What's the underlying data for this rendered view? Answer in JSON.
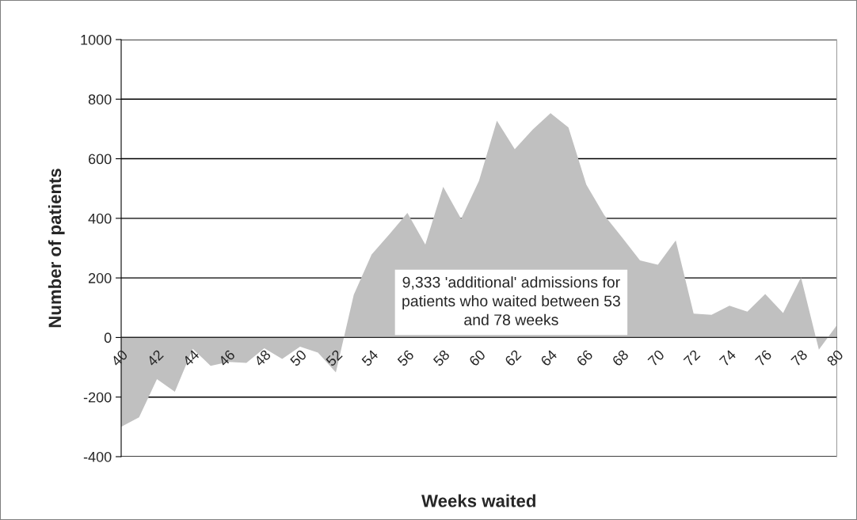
{
  "chart_data": {
    "type": "area",
    "xlabel": "Weeks waited",
    "ylabel": "Number of patients",
    "categories": [
      "40",
      null,
      "42",
      null,
      "44",
      null,
      "46",
      null,
      "48",
      null,
      "50",
      null,
      "52",
      null,
      "54",
      null,
      "56",
      null,
      "58",
      null,
      "60",
      null,
      "62",
      null,
      "64",
      null,
      "66",
      null,
      "68",
      null,
      "70",
      null,
      "72",
      null,
      "74",
      null,
      "76",
      null,
      "78",
      null,
      "80"
    ],
    "series": [
      {
        "color": "#c0c0c0",
        "values": [
          -300,
          -268,
          -140,
          -182,
          -38,
          -95,
          -82,
          -85,
          -36,
          -72,
          -31,
          -51,
          -117,
          143,
          279,
          347,
          418,
          312,
          506,
          398,
          526,
          728,
          632,
          698,
          753,
          705,
          513,
          411,
          336,
          259,
          244,
          326,
          80,
          76,
          107,
          87,
          146,
          82,
          202,
          -41,
          41
        ]
      }
    ],
    "ylim": [
      -400,
      1000
    ],
    "yticks": [
      -400,
      -200,
      0,
      200,
      400,
      600,
      800,
      1000
    ],
    "grid": "y",
    "annotations": [
      "9,333 'additional' admissions for\npatients who waited between 53\nand 78 weeks"
    ]
  }
}
